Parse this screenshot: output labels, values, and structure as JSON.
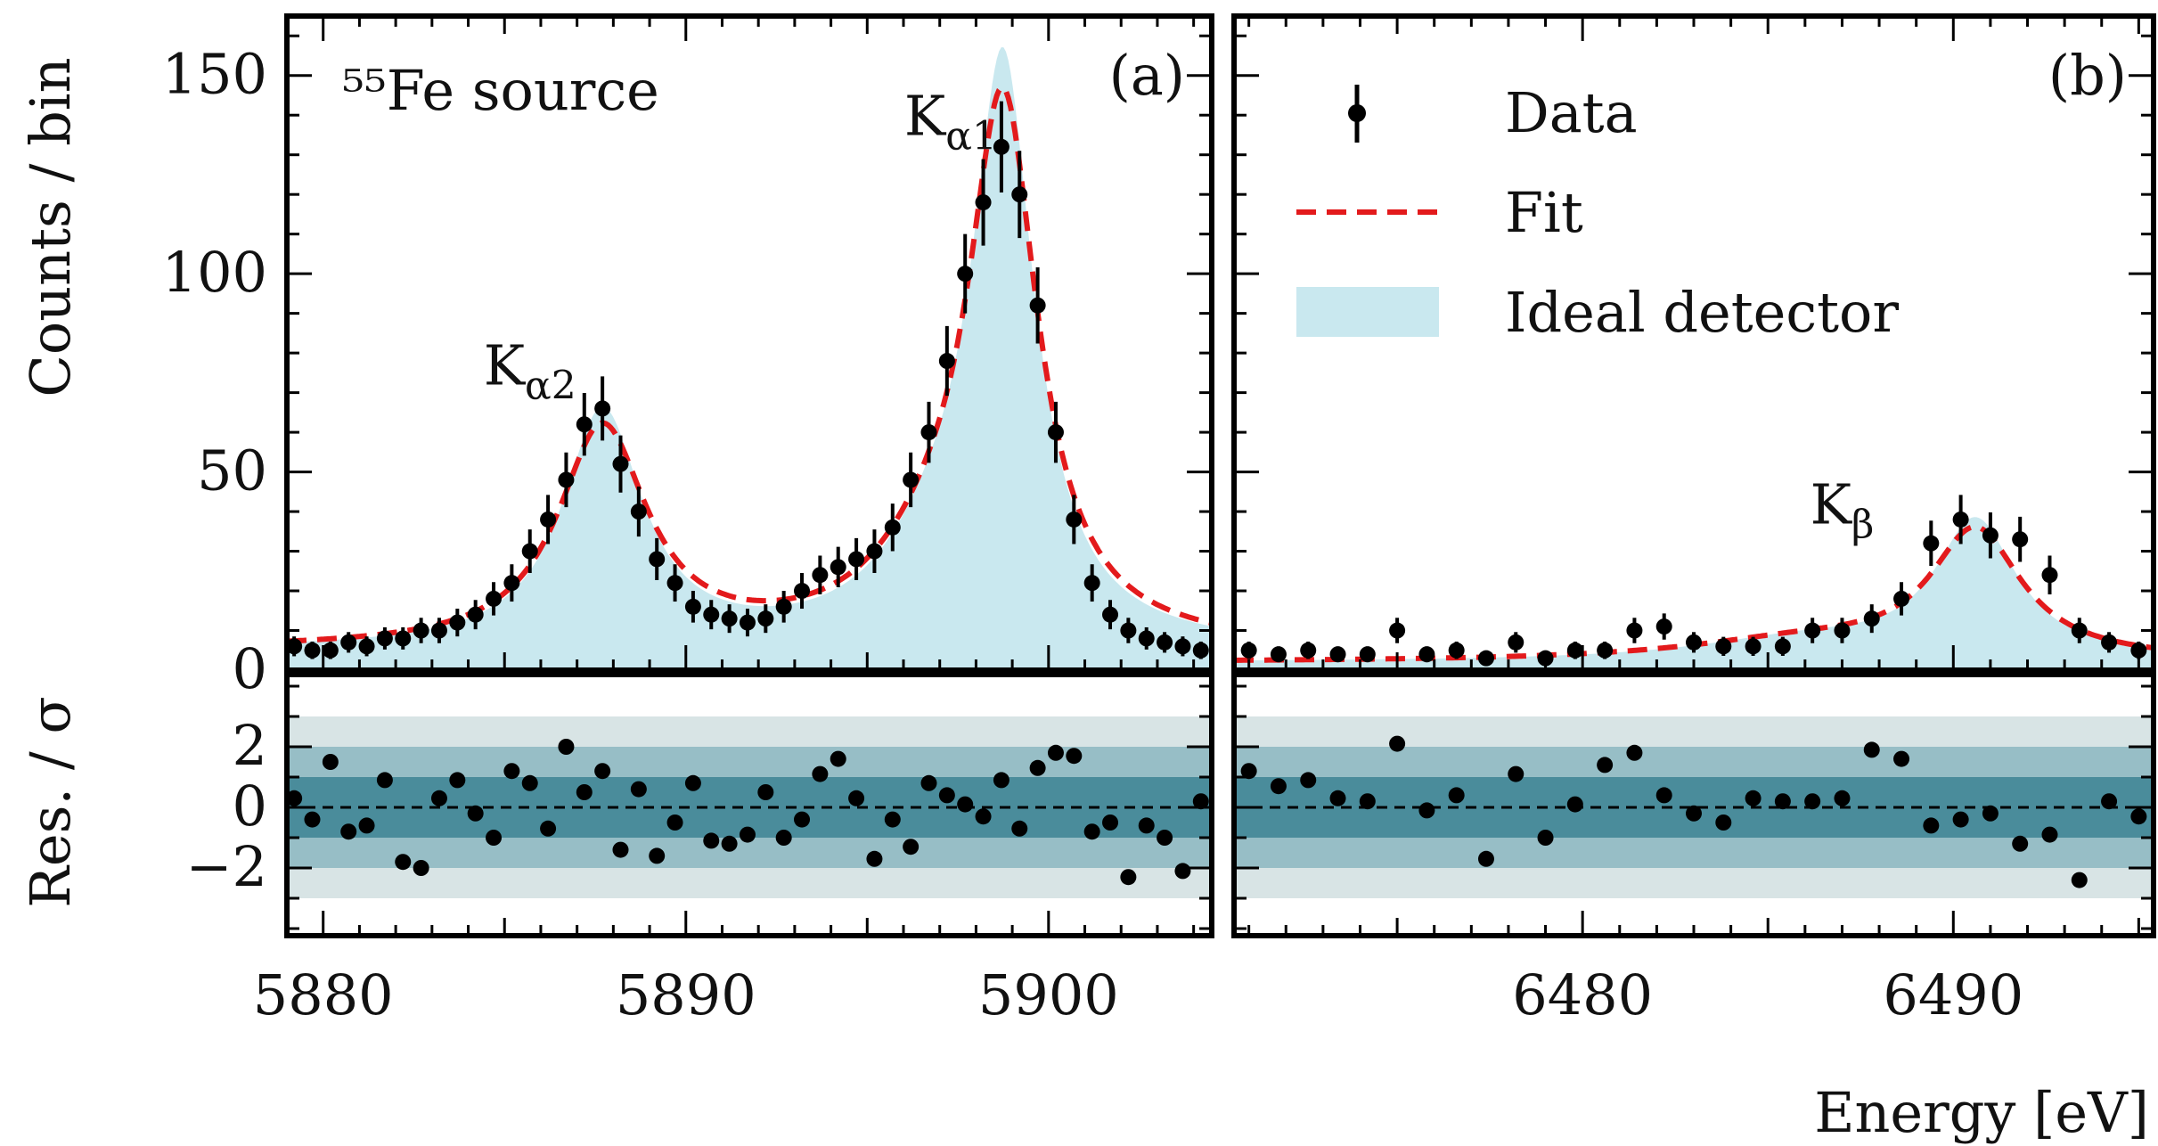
{
  "chart_data": {
    "type": "scatter",
    "ylabel_top": "Counts / bin",
    "ylabel_bottom": "Res. / σ",
    "xlabel": "Energy [eV]",
    "colors": {
      "data": "#000000",
      "fit": "#e31a1c",
      "ideal_fill": "#c9e8ef",
      "band1": "#4a8c9b",
      "band2": "#97bec6",
      "band3": "#d8e4e5"
    },
    "legend": {
      "data_label": "Data",
      "fit_label": "Fit",
      "ideal_label": "Ideal detector",
      "position": "top-right of panel (b)"
    },
    "residual_bands": [
      1,
      2,
      3
    ],
    "panels": [
      {
        "label": "(a)",
        "annotation": "⁵⁵Fe source",
        "xlim": [
          5879,
          5904.5
        ],
        "ylim": [
          0,
          165
        ],
        "res_ylim": [
          -4,
          4
        ],
        "xticks": [
          5880,
          5890,
          5900
        ],
        "yticks": [
          0,
          50,
          100,
          150
        ],
        "res_yticks": [
          -2,
          0,
          2
        ],
        "res_ytick_labels": [
          "−2",
          "0",
          "2"
        ],
        "peak_labels": [
          {
            "main": "K",
            "sub": "α2",
            "x": 5885.7,
            "y": 72
          },
          {
            "main": "K",
            "sub": "α1",
            "x": 5897.3,
            "y": 135
          }
        ],
        "model": {
          "background": 5,
          "peaks": [
            {
              "center": 5887.7,
              "amplitude": 55,
              "width": 1.5
            },
            {
              "center": 5898.75,
              "amplitude": 130,
              "width": 1.15
            },
            {
              "center": 5897.0,
              "amplitude": 18,
              "width": 2.2
            }
          ]
        },
        "data": {
          "x": [
            5879.2,
            5879.7,
            5880.2,
            5880.7,
            5881.2,
            5881.7,
            5882.2,
            5882.7,
            5883.2,
            5883.7,
            5884.2,
            5884.7,
            5885.2,
            5885.7,
            5886.2,
            5886.7,
            5887.2,
            5887.7,
            5888.2,
            5888.7,
            5889.2,
            5889.7,
            5890.2,
            5890.7,
            5891.2,
            5891.7,
            5892.2,
            5892.7,
            5893.2,
            5893.7,
            5894.2,
            5894.7,
            5895.2,
            5895.7,
            5896.2,
            5896.7,
            5897.2,
            5897.7,
            5898.2,
            5898.7,
            5899.2,
            5899.7,
            5900.2,
            5900.7,
            5901.2,
            5901.7,
            5902.2,
            5902.7,
            5903.2,
            5903.7,
            5904.2
          ],
          "y": [
            6,
            5,
            5,
            7,
            6,
            8,
            8,
            10,
            10,
            12,
            14,
            18,
            22,
            30,
            38,
            48,
            62,
            66,
            52,
            40,
            28,
            22,
            16,
            14,
            13,
            12,
            13,
            16,
            20,
            24,
            26,
            28,
            30,
            36,
            48,
            60,
            78,
            100,
            118,
            132,
            120,
            92,
            60,
            38,
            22,
            14,
            10,
            8,
            7,
            6,
            5
          ],
          "err": [
            2.5,
            2.2,
            2.2,
            2.6,
            2.5,
            2.8,
            2.8,
            3.2,
            3.2,
            3.5,
            3.7,
            4.2,
            4.7,
            5.5,
            6.2,
            6.9,
            7.9,
            8.1,
            7.2,
            6.3,
            5.3,
            4.7,
            4.0,
            3.7,
            3.6,
            3.5,
            3.6,
            4.0,
            4.5,
            4.9,
            5.1,
            5.3,
            5.5,
            6.0,
            6.9,
            7.7,
            8.8,
            10.0,
            10.9,
            11.5,
            11.0,
            9.6,
            7.7,
            6.2,
            4.7,
            3.7,
            3.2,
            2.8,
            2.6,
            2.5,
            2.2
          ],
          "residuals": [
            0.3,
            -0.4,
            1.5,
            -0.8,
            -0.6,
            0.9,
            -1.8,
            -2.0,
            0.3,
            0.9,
            -0.2,
            -1.0,
            1.2,
            0.8,
            -0.7,
            2.0,
            0.5,
            1.2,
            -1.4,
            0.6,
            -1.6,
            -0.5,
            0.8,
            -1.1,
            -1.2,
            -0.9,
            0.5,
            -1.0,
            -0.4,
            1.1,
            1.6,
            0.3,
            -1.7,
            -0.4,
            -1.3,
            0.8,
            0.4,
            0.1,
            -0.3,
            0.9,
            -0.7,
            1.3,
            1.8,
            1.7,
            -0.8,
            -0.5,
            -2.3,
            -0.6,
            -1.0,
            -2.1,
            0.2
          ]
        }
      },
      {
        "label": "(b)",
        "xlim": [
          6470.6,
          6495.4
        ],
        "ylim": [
          0,
          165
        ],
        "res_ylim": [
          -4,
          4
        ],
        "xticks": [
          6480,
          6490
        ],
        "yticks": [
          0,
          50,
          100,
          150
        ],
        "res_yticks": [
          -2,
          0,
          2
        ],
        "res_ytick_labels": [
          "−2",
          "0",
          "2"
        ],
        "peak_labels": [
          {
            "main": "K",
            "sub": "β",
            "x": 6487.0,
            "y": 37
          }
        ],
        "model": {
          "background": 2,
          "peaks": [
            {
              "center": 6490.6,
              "amplitude": 32,
              "width": 1.5
            },
            {
              "center": 6486.0,
              "amplitude": 5,
              "width": 4.0
            }
          ]
        },
        "data": {
          "x": [
            6471.0,
            6471.8,
            6472.6,
            6473.4,
            6474.2,
            6475.0,
            6475.8,
            6476.6,
            6477.4,
            6478.2,
            6479.0,
            6479.8,
            6480.6,
            6481.4,
            6482.2,
            6483.0,
            6483.8,
            6484.6,
            6485.4,
            6486.2,
            6487.0,
            6487.8,
            6488.6,
            6489.4,
            6490.2,
            6491.0,
            6491.8,
            6492.6,
            6493.4,
            6494.2,
            6495.0
          ],
          "y": [
            5,
            4,
            5,
            4,
            4,
            10,
            4,
            5,
            3,
            7,
            3,
            5,
            5,
            10,
            11,
            7,
            6,
            6,
            6,
            10,
            10,
            13,
            18,
            32,
            38,
            34,
            33,
            24,
            10,
            7,
            5
          ],
          "err": [
            2.2,
            2.0,
            2.2,
            2.0,
            2.0,
            3.2,
            2.0,
            2.2,
            1.7,
            2.6,
            1.7,
            2.2,
            2.2,
            3.2,
            3.3,
            2.6,
            2.4,
            2.4,
            2.4,
            3.2,
            3.2,
            3.6,
            4.2,
            5.7,
            6.2,
            5.8,
            5.7,
            4.9,
            3.2,
            2.6,
            2.2
          ],
          "residuals": [
            1.2,
            0.7,
            0.9,
            0.3,
            0.2,
            2.1,
            -0.1,
            0.4,
            -1.7,
            1.1,
            -1.0,
            0.1,
            1.4,
            1.8,
            0.4,
            -0.2,
            -0.5,
            0.3,
            0.2,
            0.2,
            0.3,
            1.9,
            1.6,
            -0.6,
            -0.4,
            -0.2,
            -1.2,
            -0.9,
            -2.4,
            0.2,
            -0.3
          ]
        }
      }
    ]
  }
}
